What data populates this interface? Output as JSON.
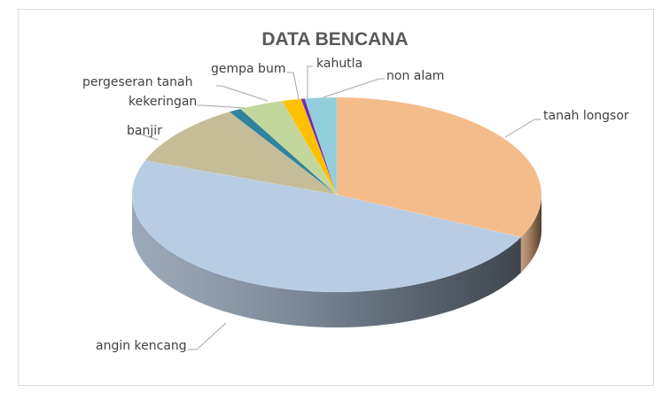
{
  "chart_data": {
    "type": "pie",
    "style": "3d",
    "title": "DATA BENCANA",
    "start": "12 o'clock, clockwise",
    "legend": "none (leader-line labels)",
    "categories": [
      "tanah longsor",
      "angin kencang",
      "banjir",
      "kekeringan",
      "pergeseran tanah",
      "gempa bum",
      "kahutla",
      "non alam"
    ],
    "values": [
      32.2,
      48.5,
      10.5,
      1.0,
      3.5,
      1.5,
      0.3,
      2.5
    ],
    "colors": [
      "#F5BC8B",
      "#B8CCE4",
      "#C4BD97",
      "#31849B",
      "#C3D69B",
      "#FFC000",
      "#7030A0",
      "#92CDDC"
    ]
  }
}
